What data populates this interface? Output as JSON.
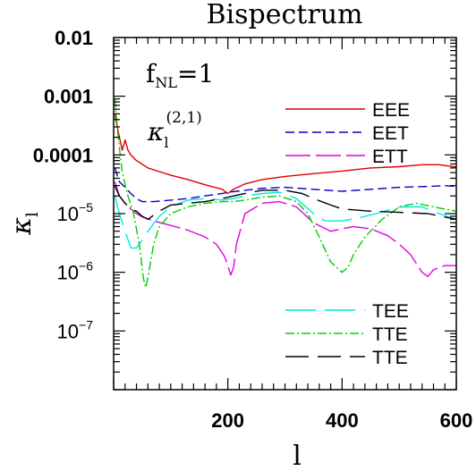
{
  "chart_data": {
    "type": "line",
    "title": "Bispectrum",
    "xlabel": "l",
    "ylabel_symbol": "κ",
    "ylabel_sub": "l",
    "xlim": [
      0,
      600
    ],
    "ylim": [
      1e-08,
      0.01
    ],
    "yscale": "log",
    "x_ticks": [
      {
        "value": 200,
        "label": "200"
      },
      {
        "value": 400,
        "label": "400"
      },
      {
        "value": 600,
        "label": "600"
      }
    ],
    "y_ticks": [
      {
        "value": 0.01,
        "label": "0.01"
      },
      {
        "value": 0.001,
        "label": "0.001"
      },
      {
        "value": 0.0001,
        "label": "0.0001"
      },
      {
        "value": 1e-05,
        "base": "10",
        "exp": "−5"
      },
      {
        "value": 1e-06,
        "base": "10",
        "exp": "−6"
      },
      {
        "value": 1e-07,
        "base": "10",
        "exp": "−7"
      }
    ],
    "annotations": {
      "fnl_main": "f",
      "fnl_sub": "NL",
      "fnl_rest": "=1",
      "kappa_main": "κ",
      "kappa_sub": "l",
      "kappa_sup": "(2,1)"
    },
    "legend_placement": "top-right and bottom-right",
    "grid": false,
    "series": [
      {
        "name": "EEE",
        "color": "#e00000",
        "dash": "solid",
        "x": [
          2,
          8,
          15,
          20,
          25,
          30,
          40,
          60,
          80,
          100,
          130,
          160,
          190,
          200,
          210,
          230,
          260,
          300,
          350,
          400,
          450,
          500,
          540,
          570,
          590,
          600
        ],
        "y": [
          0.0005,
          0.00025,
          0.00012,
          0.00018,
          0.00012,
          0.0001,
          8e-05,
          6e-05,
          5.2e-05,
          4.5e-05,
          3.8e-05,
          3.1e-05,
          2.6e-05,
          2.2e-05,
          2.6e-05,
          3.2e-05,
          3.8e-05,
          4.3e-05,
          4.8e-05,
          5.3e-05,
          6e-05,
          6.3e-05,
          6.8e-05,
          6.8e-05,
          6.4e-05,
          6.2e-05
        ]
      },
      {
        "name": "EET",
        "color": "#0000d0",
        "dash": "10,5",
        "x": [
          2,
          10,
          20,
          30,
          40,
          50,
          70,
          100,
          130,
          160,
          190,
          200,
          230,
          260,
          300,
          350,
          400,
          450,
          500,
          550,
          580,
          600
        ],
        "y": [
          6e-05,
          3.5e-05,
          2.8e-05,
          2.2e-05,
          1.8e-05,
          1.6e-05,
          1.6e-05,
          1.7e-05,
          1.8e-05,
          2e-05,
          2.2e-05,
          2.3e-05,
          2.5e-05,
          2.7e-05,
          2.8e-05,
          2.6e-05,
          2.4e-05,
          2.6e-05,
          2.8e-05,
          2.9e-05,
          3e-05,
          2.9e-05
        ]
      },
      {
        "name": "ETT",
        "color": "#e000e0",
        "dash": "28,6",
        "x": [
          2,
          10,
          20,
          30,
          40,
          50,
          70,
          100,
          130,
          160,
          180,
          195,
          205,
          210,
          215,
          230,
          260,
          290,
          320,
          350,
          380,
          400,
          420,
          450,
          480,
          500,
          520,
          540,
          550,
          560,
          580,
          600
        ],
        "y": [
          3.5e-05,
          2e-05,
          1.5e-05,
          1.2e-05,
          1e-05,
          8.8e-06,
          7.5e-06,
          6.3e-06,
          5.2e-06,
          4e-06,
          3e-06,
          1.8e-06,
          9e-07,
          1.2e-06,
          3e-06,
          1e-05,
          1.5e-05,
          1.6e-05,
          1.3e-05,
          7e-06,
          5e-06,
          5.5e-06,
          6e-06,
          5.5e-06,
          4.2e-06,
          3e-06,
          2e-06,
          1e-06,
          8.5e-07,
          1.1e-06,
          1.3e-06,
          1.3e-06
        ]
      },
      {
        "name": "TEE",
        "color": "#00e8e8",
        "dash": "34,10",
        "x": [
          2,
          10,
          20,
          30,
          40,
          50,
          60,
          80,
          100,
          130,
          160,
          190,
          210,
          230,
          260,
          290,
          320,
          350,
          370,
          400,
          430,
          460,
          500,
          540,
          570,
          600
        ],
        "y": [
          2e-05,
          1e-05,
          5e-06,
          2.6e-06,
          2.6e-06,
          3.5e-06,
          5e-06,
          9e-06,
          1.3e-05,
          1.7e-05,
          1.8e-05,
          1.7e-05,
          1.8e-05,
          2e-05,
          2.2e-05,
          2.3e-05,
          1.8e-05,
          1e-05,
          7.5e-06,
          7.5e-06,
          8.5e-06,
          1e-05,
          1.3e-05,
          1.3e-05,
          1e-05,
          8e-06
        ]
      },
      {
        "name": "TTE",
        "color": "#00d000",
        "dash": "10,3,2,3",
        "x": [
          2,
          8,
          15,
          25,
          35,
          45,
          52,
          56,
          60,
          70,
          80,
          100,
          130,
          160,
          190,
          210,
          230,
          260,
          290,
          320,
          340,
          360,
          380,
          400,
          410,
          420,
          440,
          470,
          500,
          530,
          560,
          600
        ],
        "y": [
          0.0009,
          0.0002,
          5e-05,
          2e-05,
          1e-05,
          3e-06,
          8e-07,
          5.5e-07,
          8e-07,
          3e-06,
          6e-06,
          1e-05,
          1.3e-05,
          1.5e-05,
          1.6e-05,
          1.6e-05,
          1.7e-05,
          1.9e-05,
          2e-05,
          1.6e-05,
          1e-05,
          4e-06,
          1.5e-06,
          1e-06,
          1.2e-06,
          2e-06,
          4e-06,
          8e-06,
          1.3e-05,
          1.5e-05,
          1.3e-05,
          1.1e-05
        ]
      },
      {
        "name": "TTE",
        "color": "#000000",
        "dash": "26,10",
        "x": [
          2,
          10,
          20,
          30,
          40,
          50,
          60,
          80,
          100,
          130,
          160,
          190,
          220,
          260,
          300,
          330,
          350,
          380,
          400,
          450,
          500,
          550,
          600
        ],
        "y": [
          3e-05,
          2e-05,
          1.5e-05,
          1.2e-05,
          1.1e-05,
          9e-06,
          8e-06,
          1.1e-05,
          1.4e-05,
          1.5e-05,
          1.6e-05,
          1.8e-05,
          2.1e-05,
          2.5e-05,
          2.5e-05,
          2.2e-05,
          1.8e-05,
          1.4e-05,
          1.2e-05,
          1.1e-05,
          1.05e-05,
          1e-05,
          8e-06
        ]
      }
    ]
  }
}
